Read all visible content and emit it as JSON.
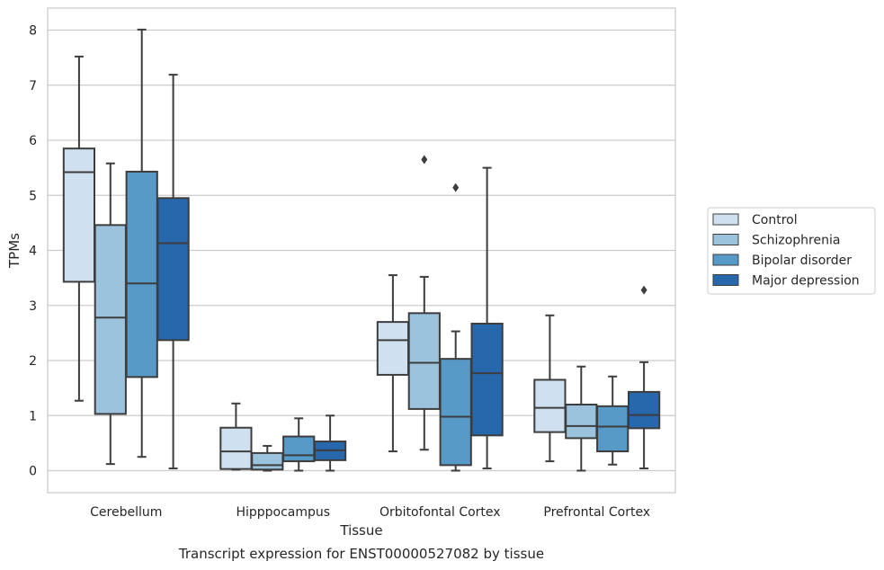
{
  "chart_data": {
    "type": "boxplot",
    "caption": "Transcript expression for ENST00000527082 by tissue",
    "xlabel": "Tissue",
    "ylabel": "TPMs",
    "ylim": [
      -0.4,
      8.4
    ],
    "yticks": [
      0,
      1,
      2,
      3,
      4,
      5,
      6,
      7,
      8
    ],
    "grid": true,
    "legend_position": "right",
    "categories": [
      "Cerebellum",
      "Hipppocampus",
      "Orbitofontal Cortex",
      "Prefrontal Cortex"
    ],
    "series": [
      {
        "name": "Control",
        "color": "#cfe0f0",
        "boxes": [
          {
            "whislo": 1.27,
            "q1": 3.43,
            "med": 5.42,
            "q3": 5.85,
            "whishi": 7.52,
            "fliers": []
          },
          {
            "whislo": 0.02,
            "q1": 0.03,
            "med": 0.35,
            "q3": 0.78,
            "whishi": 1.22,
            "fliers": []
          },
          {
            "whislo": 0.35,
            "q1": 1.74,
            "med": 2.37,
            "q3": 2.7,
            "whishi": 3.55,
            "fliers": []
          },
          {
            "whislo": 0.17,
            "q1": 0.7,
            "med": 1.14,
            "q3": 1.65,
            "whishi": 2.82,
            "fliers": []
          }
        ]
      },
      {
        "name": "Schizophrenia",
        "color": "#9cc3de",
        "boxes": [
          {
            "whislo": 0.12,
            "q1": 1.03,
            "med": 2.78,
            "q3": 4.46,
            "whishi": 5.58,
            "fliers": []
          },
          {
            "whislo": 0.0,
            "q1": 0.02,
            "med": 0.1,
            "q3": 0.32,
            "whishi": 0.45,
            "fliers": []
          },
          {
            "whislo": 0.38,
            "q1": 1.12,
            "med": 1.96,
            "q3": 2.86,
            "whishi": 3.52,
            "fliers": [
              5.65
            ]
          },
          {
            "whislo": 0.0,
            "q1": 0.59,
            "med": 0.81,
            "q3": 1.2,
            "whishi": 1.89,
            "fliers": []
          }
        ]
      },
      {
        "name": "Bipolar disorder",
        "color": "#5799c7",
        "boxes": [
          {
            "whislo": 0.25,
            "q1": 1.7,
            "med": 3.4,
            "q3": 5.43,
            "whishi": 8.01,
            "fliers": []
          },
          {
            "whislo": 0.0,
            "q1": 0.17,
            "med": 0.28,
            "q3": 0.62,
            "whishi": 0.95,
            "fliers": []
          },
          {
            "whislo": 0.0,
            "q1": 0.1,
            "med": 0.98,
            "q3": 2.03,
            "whishi": 2.53,
            "fliers": [
              5.14
            ]
          },
          {
            "whislo": 0.11,
            "q1": 0.35,
            "med": 0.8,
            "q3": 1.17,
            "whishi": 1.71,
            "fliers": []
          }
        ]
      },
      {
        "name": "Major depression",
        "color": "#2768ad",
        "boxes": [
          {
            "whislo": 0.04,
            "q1": 2.37,
            "med": 4.13,
            "q3": 4.95,
            "whishi": 7.19,
            "fliers": []
          },
          {
            "whislo": 0.0,
            "q1": 0.19,
            "med": 0.37,
            "q3": 0.53,
            "whishi": 1.0,
            "fliers": []
          },
          {
            "whislo": 0.04,
            "q1": 0.64,
            "med": 1.77,
            "q3": 2.67,
            "whishi": 5.5,
            "fliers": []
          },
          {
            "whislo": 0.04,
            "q1": 0.77,
            "med": 1.01,
            "q3": 1.43,
            "whishi": 1.97,
            "fliers": [
              3.28
            ]
          }
        ]
      }
    ]
  }
}
